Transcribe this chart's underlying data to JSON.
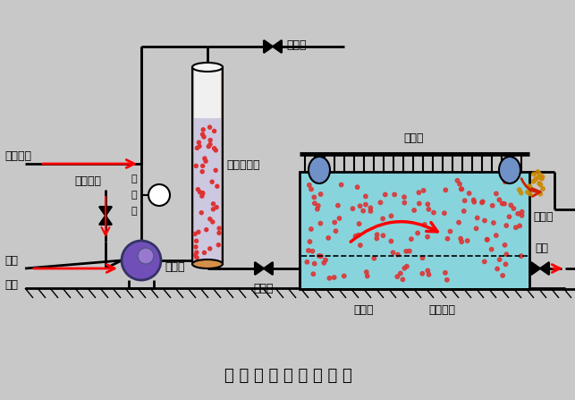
{
  "bg_color": "#c8c8c8",
  "title": "全 溶 气 气 浮 工 艺 流 程",
  "title_fontsize": 13,
  "labels": {
    "air_inlet": "空气进入",
    "pressure_gauge_line1": "压",
    "pressure_gauge_line2": "力",
    "pressure_gauge_line3": "表",
    "pressure_tank": "压力溶气罐",
    "release_valve": "放气阀",
    "chemical": "化学药剂",
    "pump": "加压泵",
    "pressure_reduce": "减压阀",
    "raw_water_line1": "原水",
    "raw_water_line2": "进入",
    "scraper": "刮渣机",
    "flotation_pool1": "气浮池",
    "flotation_pool2": "气浮池",
    "water_collect": "集水系统",
    "outlet": "出水"
  },
  "tank_color": "#d4904a",
  "pool_water_color": "#88d4dc",
  "pool_dots_color": "#dd3333",
  "ground_hatch_color": "#333333"
}
